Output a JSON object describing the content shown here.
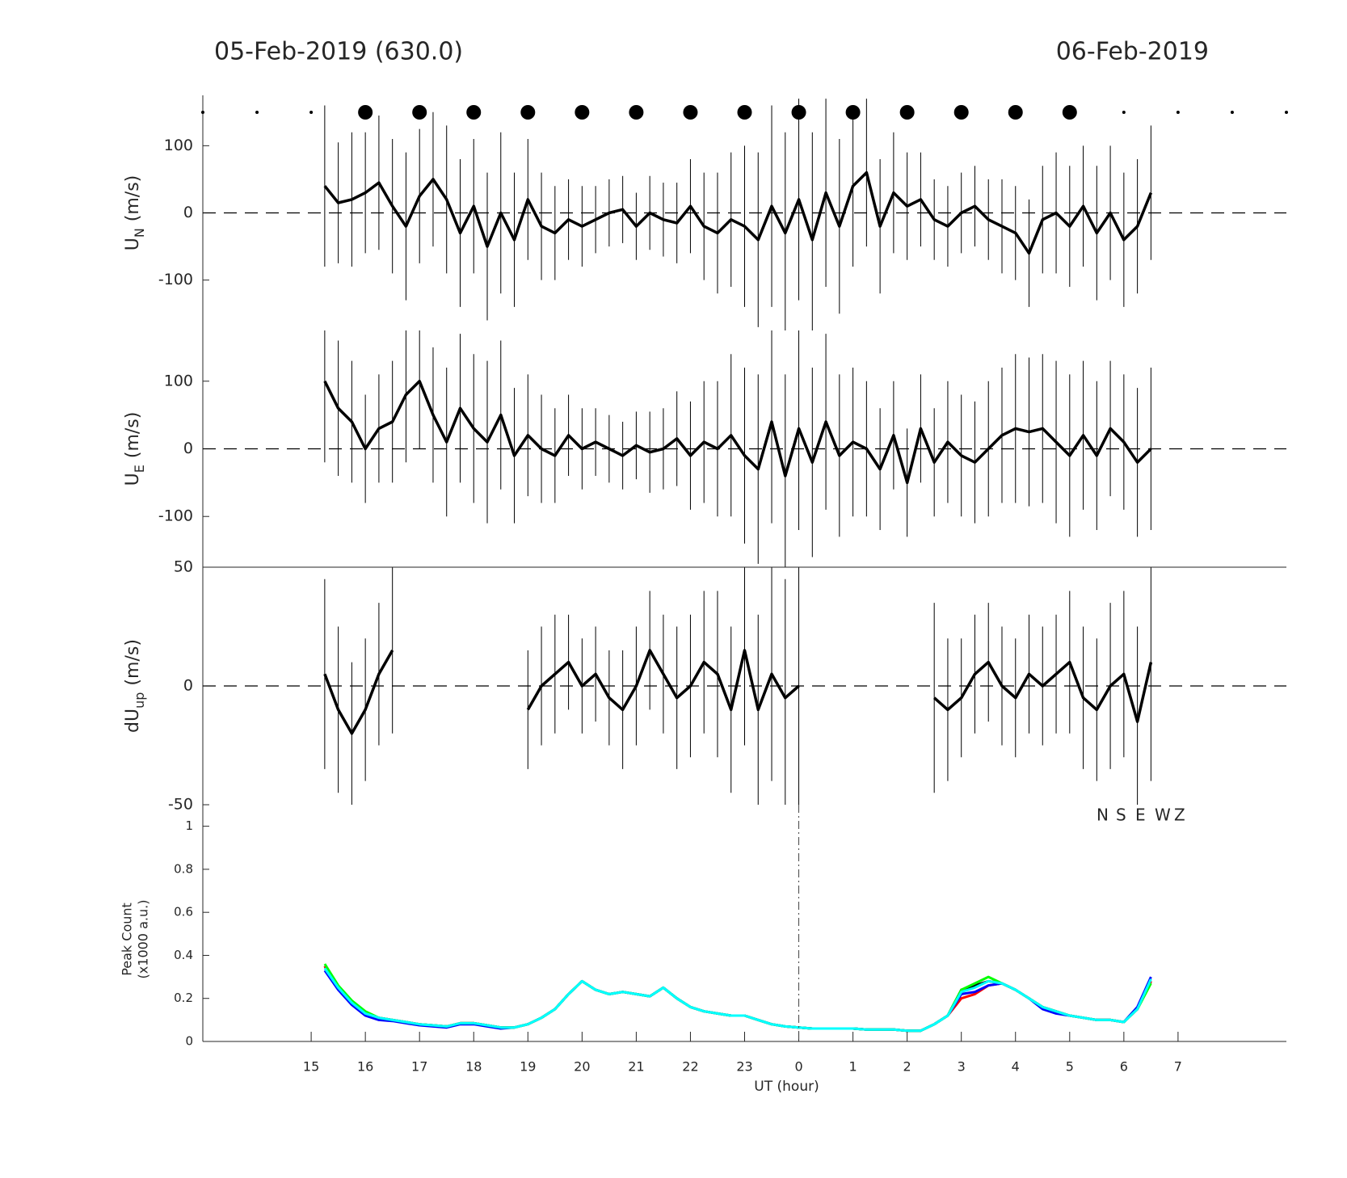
{
  "chart_data": [
    {
      "type": "errorbar",
      "title": "05-Feb-2019 (630.0)",
      "title_right": "06-Feb-2019",
      "ylabel": {
        "main": "U",
        "sub": "N",
        "unit": "(m/s)"
      },
      "xlim": [
        13,
        33
      ],
      "ylim": [
        -175,
        175
      ],
      "yticks": [
        -100,
        0,
        100
      ],
      "hline": 0,
      "markers": {
        "x": [
          13,
          14,
          15,
          16,
          17,
          18,
          19,
          20,
          21,
          22,
          23,
          24,
          25,
          26,
          27,
          28,
          29,
          30,
          31,
          32,
          33
        ],
        "size": [
          2,
          2,
          2,
          9,
          9,
          9,
          9,
          9,
          9,
          9,
          9,
          9,
          9,
          9,
          9,
          9,
          9,
          2,
          2,
          2,
          2
        ]
      },
      "x": [
        15.25,
        15.5,
        15.75,
        16,
        16.25,
        16.5,
        16.75,
        17,
        17.25,
        17.5,
        17.75,
        18,
        18.25,
        18.5,
        18.75,
        19,
        19.25,
        19.5,
        19.75,
        20,
        20.25,
        20.5,
        20.75,
        21,
        21.25,
        21.5,
        21.75,
        22,
        22.25,
        22.5,
        22.75,
        23,
        23.25,
        23.5,
        23.75,
        24,
        24.25,
        24.5,
        24.75,
        25,
        25.25,
        25.5,
        25.75,
        26,
        26.25,
        26.5,
        26.75,
        27,
        27.25,
        27.5,
        27.75,
        28,
        28.25,
        28.5,
        28.75,
        29,
        29.25,
        29.5,
        29.75,
        30,
        30.25,
        30.5
      ],
      "values": [
        40,
        15,
        20,
        30,
        45,
        10,
        -20,
        25,
        50,
        20,
        -30,
        10,
        -50,
        0,
        -40,
        20,
        -20,
        -30,
        -10,
        -20,
        -10,
        0,
        5,
        -20,
        0,
        -10,
        -15,
        10,
        -20,
        -30,
        -10,
        -20,
        -40,
        10,
        -30,
        20,
        -40,
        30,
        -20,
        40,
        60,
        -20,
        30,
        10,
        20,
        -10,
        -20,
        0,
        10,
        -10,
        -20,
        -30,
        -60,
        -10,
        0,
        -20,
        10,
        -30,
        0,
        -40,
        -20,
        30
      ],
      "errors": [
        120,
        90,
        100,
        90,
        100,
        100,
        110,
        100,
        100,
        110,
        110,
        100,
        110,
        120,
        100,
        90,
        80,
        70,
        60,
        60,
        50,
        50,
        50,
        50,
        55,
        55,
        60,
        70,
        80,
        90,
        100,
        120,
        130,
        150,
        150,
        150,
        160,
        140,
        130,
        120,
        110,
        100,
        90,
        80,
        70,
        60,
        60,
        60,
        60,
        60,
        70,
        70,
        80,
        80,
        90,
        90,
        90,
        100,
        100,
        100,
        100,
        100
      ]
    },
    {
      "type": "errorbar",
      "ylabel": {
        "main": "U",
        "sub": "E",
        "unit": "(m/s)"
      },
      "xlim": [
        13,
        33
      ],
      "ylim": [
        -175,
        175
      ],
      "yticks": [
        -100,
        0,
        100
      ],
      "hline": 0,
      "x": [
        15.25,
        15.5,
        15.75,
        16,
        16.25,
        16.5,
        16.75,
        17,
        17.25,
        17.5,
        17.75,
        18,
        18.25,
        18.5,
        18.75,
        19,
        19.25,
        19.5,
        19.75,
        20,
        20.25,
        20.5,
        20.75,
        21,
        21.25,
        21.5,
        21.75,
        22,
        22.25,
        22.5,
        22.75,
        23,
        23.25,
        23.5,
        23.75,
        24,
        24.25,
        24.5,
        24.75,
        25,
        25.25,
        25.5,
        25.75,
        26,
        26.25,
        26.5,
        26.75,
        27,
        27.25,
        27.5,
        27.75,
        28,
        28.25,
        28.5,
        28.75,
        29,
        29.25,
        29.5,
        29.75,
        30,
        30.25,
        30.5
      ],
      "values": [
        100,
        60,
        40,
        0,
        30,
        40,
        80,
        100,
        50,
        10,
        60,
        30,
        10,
        50,
        -10,
        20,
        0,
        -10,
        20,
        0,
        10,
        0,
        -10,
        5,
        -5,
        0,
        15,
        -10,
        10,
        0,
        20,
        -10,
        -30,
        40,
        -40,
        30,
        -20,
        40,
        -10,
        10,
        0,
        -30,
        20,
        -50,
        30,
        -20,
        10,
        -10,
        -20,
        0,
        20,
        30,
        25,
        30,
        10,
        -10,
        20,
        -10,
        30,
        10,
        -20,
        0
      ],
      "errors": [
        120,
        100,
        90,
        80,
        80,
        90,
        100,
        100,
        100,
        110,
        110,
        110,
        120,
        110,
        100,
        90,
        80,
        70,
        60,
        60,
        50,
        50,
        50,
        50,
        60,
        60,
        70,
        80,
        90,
        100,
        120,
        130,
        140,
        150,
        150,
        150,
        140,
        130,
        120,
        110,
        100,
        90,
        80,
        80,
        80,
        80,
        90,
        90,
        90,
        100,
        100,
        110,
        110,
        110,
        120,
        120,
        110,
        110,
        100,
        100,
        110,
        120
      ]
    },
    {
      "type": "errorbar",
      "ylabel": {
        "main": "dU",
        "sub": "up",
        "unit": "(m/s)"
      },
      "xlim": [
        13,
        33
      ],
      "ylim": [
        -50,
        50
      ],
      "yticks": [
        -50,
        0,
        50
      ],
      "hline": 0,
      "x": [
        15.25,
        15.5,
        15.75,
        16,
        16.25,
        16.5,
        16.75,
        17,
        17.25,
        17.5,
        17.75,
        18,
        18.25,
        18.5,
        18.75,
        19,
        19.25,
        19.5,
        19.75,
        20,
        20.25,
        20.5,
        20.75,
        21,
        21.25,
        21.5,
        21.75,
        22,
        22.25,
        22.5,
        22.75,
        23,
        23.25,
        23.5,
        23.75,
        24,
        24.25,
        24.5,
        24.75,
        25,
        25.25,
        25.5,
        25.75,
        26,
        26.25,
        26.5,
        26.75,
        27,
        27.25,
        27.5,
        27.75,
        28,
        28.25,
        28.5,
        28.75,
        29,
        29.25,
        29.5,
        29.75,
        30,
        30.25,
        30.5
      ],
      "values": [
        5,
        -10,
        -20,
        -10,
        5,
        15,
        null,
        null,
        null,
        null,
        null,
        null,
        null,
        null,
        null,
        -10,
        0,
        5,
        10,
        0,
        5,
        -5,
        -10,
        0,
        15,
        5,
        -5,
        0,
        10,
        5,
        -10,
        15,
        -10,
        5,
        -5,
        0,
        null,
        null,
        null,
        null,
        null,
        null,
        null,
        null,
        null,
        -5,
        -10,
        -5,
        5,
        10,
        0,
        -5,
        5,
        0,
        5,
        10,
        -5,
        -10,
        0,
        5,
        -15,
        10
      ],
      "errors": [
        40,
        35,
        30,
        30,
        30,
        35,
        null,
        null,
        null,
        null,
        null,
        null,
        null,
        null,
        null,
        25,
        25,
        25,
        20,
        20,
        20,
        20,
        25,
        25,
        25,
        25,
        30,
        30,
        30,
        35,
        35,
        40,
        40,
        45,
        50,
        50,
        null,
        null,
        null,
        null,
        null,
        null,
        null,
        null,
        null,
        40,
        30,
        25,
        25,
        25,
        25,
        25,
        25,
        25,
        25,
        30,
        30,
        30,
        35,
        35,
        40,
        50
      ]
    },
    {
      "type": "line",
      "ylabel_lines": [
        "Peak Count",
        "(x1000 a.u.)"
      ],
      "xlabel": "UT (hour)",
      "xlim": [
        13,
        33
      ],
      "ylim": [
        0,
        1.1
      ],
      "yticks": [
        0,
        0.2,
        0.4,
        0.6,
        0.8,
        1
      ],
      "xticks": [
        15,
        16,
        17,
        18,
        19,
        20,
        21,
        22,
        23,
        {
          "value": 24,
          "label": "0"
        },
        {
          "value": 25,
          "label": "1"
        },
        {
          "value": 26,
          "label": "2"
        },
        {
          "value": 27,
          "label": "3"
        },
        {
          "value": 28,
          "label": "4"
        },
        {
          "value": 29,
          "label": "5"
        },
        {
          "value": 30,
          "label": "6"
        },
        {
          "value": 31,
          "label": "7"
        }
      ],
      "x": [
        15.25,
        15.5,
        15.75,
        16,
        16.25,
        16.5,
        16.75,
        17,
        17.25,
        17.5,
        17.75,
        18,
        18.25,
        18.5,
        18.75,
        19,
        19.25,
        19.5,
        19.75,
        20,
        20.25,
        20.5,
        20.75,
        21,
        21.25,
        21.5,
        21.75,
        22,
        22.25,
        22.5,
        22.75,
        23,
        23.25,
        23.5,
        23.75,
        24,
        24.25,
        24.5,
        24.75,
        25,
        25.25,
        25.5,
        25.75,
        26,
        26.25,
        26.5,
        26.75,
        27,
        27.25,
        27.5,
        27.75,
        28,
        28.25,
        28.5,
        28.75,
        29,
        29.25,
        29.5,
        29.75,
        30,
        30.25,
        30.5
      ],
      "series": [
        {
          "name": "N",
          "color": "#000000",
          "values": [
            0.35,
            0.25,
            0.18,
            0.13,
            0.11,
            0.1,
            0.09,
            0.08,
            0.075,
            0.07,
            0.085,
            0.085,
            0.075,
            0.065,
            0.065,
            0.08,
            0.11,
            0.15,
            0.22,
            0.28,
            0.24,
            0.22,
            0.23,
            0.22,
            0.21,
            0.25,
            0.2,
            0.16,
            0.14,
            0.13,
            0.12,
            0.12,
            0.1,
            0.08,
            0.07,
            0.065,
            0.06,
            0.06,
            0.06,
            0.06,
            0.055,
            0.055,
            0.055,
            0.05,
            0.05,
            0.08,
            0.12,
            0.24,
            0.26,
            0.28,
            0.27,
            0.24,
            0.2,
            0.16,
            0.14,
            0.12,
            0.11,
            0.1,
            0.1,
            0.09,
            0.15,
            0.28
          ]
        },
        {
          "name": "S",
          "color": "#ff0000",
          "values": [
            0.35,
            0.25,
            0.18,
            0.13,
            0.11,
            0.1,
            0.09,
            0.08,
            0.075,
            0.07,
            0.085,
            0.085,
            0.075,
            0.065,
            0.065,
            0.08,
            0.11,
            0.15,
            0.22,
            0.28,
            0.24,
            0.22,
            0.23,
            0.22,
            0.21,
            0.25,
            0.2,
            0.16,
            0.14,
            0.13,
            0.12,
            0.12,
            0.1,
            0.08,
            0.07,
            0.065,
            0.06,
            0.06,
            0.06,
            0.06,
            0.055,
            0.055,
            0.055,
            0.05,
            0.05,
            0.08,
            0.12,
            0.2,
            0.22,
            0.26,
            0.27,
            0.24,
            0.2,
            0.16,
            0.14,
            0.12,
            0.11,
            0.1,
            0.1,
            0.09,
            0.15,
            0.28
          ]
        },
        {
          "name": "E",
          "color": "#0000ff",
          "values": [
            0.33,
            0.24,
            0.17,
            0.12,
            0.1,
            0.095,
            0.085,
            0.075,
            0.07,
            0.065,
            0.08,
            0.08,
            0.07,
            0.06,
            0.065,
            0.08,
            0.11,
            0.15,
            0.22,
            0.28,
            0.24,
            0.22,
            0.23,
            0.22,
            0.21,
            0.25,
            0.2,
            0.16,
            0.14,
            0.13,
            0.12,
            0.12,
            0.1,
            0.08,
            0.07,
            0.065,
            0.06,
            0.06,
            0.06,
            0.06,
            0.055,
            0.055,
            0.055,
            0.05,
            0.05,
            0.08,
            0.12,
            0.22,
            0.23,
            0.26,
            0.27,
            0.24,
            0.2,
            0.15,
            0.13,
            0.12,
            0.11,
            0.1,
            0.1,
            0.09,
            0.16,
            0.3
          ]
        },
        {
          "name": "W",
          "color": "#00ff00",
          "values": [
            0.36,
            0.26,
            0.19,
            0.14,
            0.11,
            0.1,
            0.09,
            0.08,
            0.075,
            0.07,
            0.085,
            0.085,
            0.075,
            0.065,
            0.065,
            0.08,
            0.11,
            0.15,
            0.22,
            0.28,
            0.24,
            0.22,
            0.23,
            0.22,
            0.21,
            0.25,
            0.2,
            0.16,
            0.14,
            0.13,
            0.12,
            0.12,
            0.1,
            0.08,
            0.07,
            0.065,
            0.06,
            0.06,
            0.06,
            0.06,
            0.055,
            0.055,
            0.055,
            0.05,
            0.05,
            0.08,
            0.12,
            0.24,
            0.27,
            0.3,
            0.27,
            0.24,
            0.2,
            0.16,
            0.14,
            0.12,
            0.11,
            0.1,
            0.1,
            0.09,
            0.15,
            0.27
          ]
        },
        {
          "name": "Z",
          "color": "#00ffff",
          "values": [
            0.34,
            0.25,
            0.18,
            0.13,
            0.11,
            0.1,
            0.09,
            0.08,
            0.075,
            0.07,
            0.085,
            0.085,
            0.075,
            0.065,
            0.065,
            0.08,
            0.11,
            0.15,
            0.22,
            0.28,
            0.24,
            0.22,
            0.23,
            0.22,
            0.21,
            0.25,
            0.2,
            0.16,
            0.14,
            0.13,
            0.12,
            0.12,
            0.1,
            0.08,
            0.07,
            0.065,
            0.06,
            0.06,
            0.06,
            0.06,
            0.055,
            0.055,
            0.055,
            0.05,
            0.05,
            0.08,
            0.12,
            0.23,
            0.25,
            0.28,
            0.27,
            0.24,
            0.2,
            0.16,
            0.14,
            0.12,
            0.11,
            0.1,
            0.1,
            0.09,
            0.15,
            0.29
          ]
        }
      ]
    }
  ]
}
